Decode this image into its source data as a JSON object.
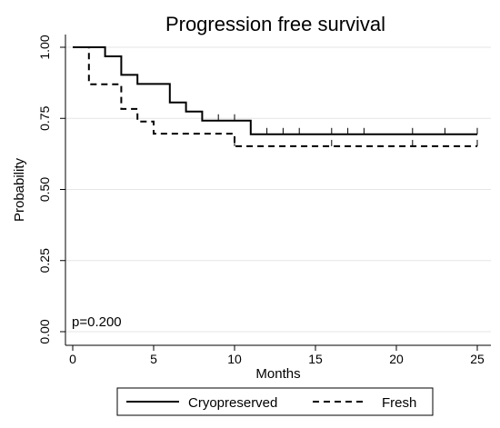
{
  "chart_data": {
    "type": "line",
    "title": "Progression free survival",
    "xlabel": "Months",
    "ylabel": "Probability",
    "xlim": [
      0,
      25
    ],
    "ylim": [
      0,
      1
    ],
    "x_ticks": [
      0,
      5,
      10,
      15,
      20,
      25
    ],
    "y_ticks": [
      0.0,
      0.25,
      0.5,
      0.75,
      1.0
    ],
    "x_tick_labels": [
      "0",
      "5",
      "10",
      "15",
      "20",
      "25"
    ],
    "y_tick_labels": [
      "0.00",
      "0.25",
      "0.50",
      "0.75",
      "1.00"
    ],
    "grid": "horizontal",
    "legend_position": "bottom",
    "annotation": "p=0.200",
    "series": [
      {
        "name": "Cryopreserved",
        "style": "solid",
        "color": "#000000",
        "steps": [
          [
            0,
            1.0
          ],
          [
            2,
            0.968
          ],
          [
            3,
            0.903
          ],
          [
            4,
            0.871
          ],
          [
            6,
            0.806
          ],
          [
            7,
            0.774
          ],
          [
            8,
            0.742
          ],
          [
            11,
            0.694
          ],
          [
            25,
            0.694
          ]
        ],
        "censored": [
          9,
          10,
          12,
          13,
          14,
          16,
          17,
          18,
          21,
          23,
          25
        ]
      },
      {
        "name": "Fresh",
        "style": "dashed",
        "color": "#000000",
        "steps": [
          [
            0,
            1.0
          ],
          [
            1,
            0.87
          ],
          [
            3,
            0.783
          ],
          [
            4,
            0.739
          ],
          [
            5,
            0.696
          ],
          [
            10,
            0.652
          ],
          [
            25,
            0.652
          ]
        ],
        "censored": [
          10,
          16,
          21,
          25
        ]
      }
    ]
  }
}
